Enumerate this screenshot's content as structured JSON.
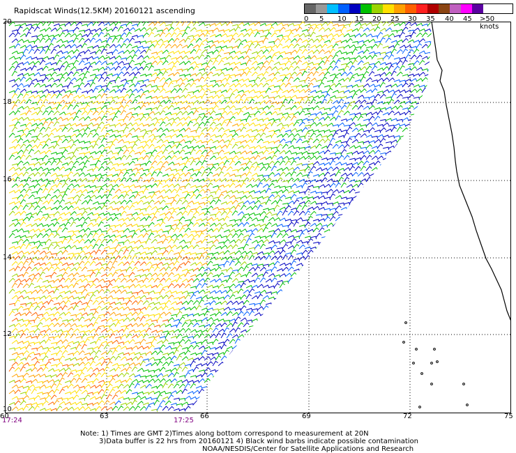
{
  "title": "Rapidscat Winds(12.5KM) 20160121 ascending",
  "legend": {
    "colors": [
      "#666666",
      "#999999",
      "#00bfff",
      "#0060ff",
      "#0000c0",
      "#00c000",
      "#9bd400",
      "#ffe000",
      "#ffa000",
      "#ff6000",
      "#ff2020",
      "#b00000",
      "#8b4513",
      "#c060c0",
      "#ff00ff",
      "#5a00a0"
    ],
    "labels": [
      "0",
      "5",
      "10",
      "15",
      "20",
      "25",
      "30",
      "35",
      "40",
      "45",
      ">50 knots"
    ]
  },
  "latitudes": [
    "20",
    "18",
    "16",
    "14",
    "12",
    "10"
  ],
  "longitudes": [
    "60",
    "63",
    "66",
    "69",
    "72",
    "75"
  ],
  "times": [
    "17:24",
    "17:25"
  ],
  "note": {
    "line1": "Note: 1) Times are GMT 2)Times along bottom correspond to measurement at 20N",
    "line2": "3)Data buffer is 22 hrs from 20160121 4) Black wind barbs indicate possible contamination",
    "line3": "NOAA/NESDIS/Center for Satellite Applications and Research"
  }
}
